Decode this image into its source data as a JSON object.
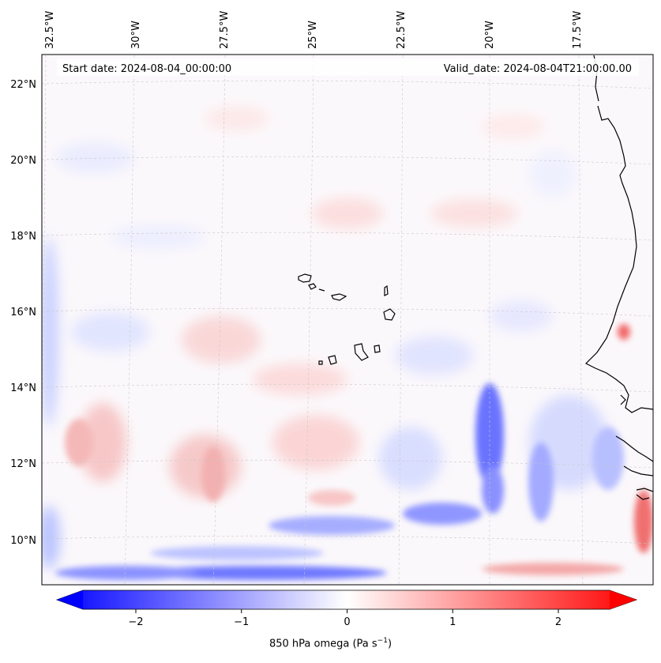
{
  "header": {
    "start_date": "Start date: 2024-08-04_00:00:00",
    "valid_date": "Valid_date: 2024-08-04T21:00:00.00"
  },
  "longitude_labels": [
    "32.5°W",
    "30°W",
    "27.5°W",
    "25°W",
    "22.5°W",
    "20°W",
    "17.5°W"
  ],
  "latitude_labels": [
    "22°N",
    "20°N",
    "18°N",
    "16°N",
    "14°N",
    "12°N",
    "10°N"
  ],
  "colorbar": {
    "tick_labels": [
      "−2",
      "−1",
      "0",
      "1",
      "2"
    ],
    "tick_values": [
      -2,
      -1,
      0,
      1,
      2
    ],
    "range": [
      -2.5,
      2.5
    ],
    "label": "850 hPa omega (Pa s",
    "label_exponent": "−1",
    "label_close": ")",
    "colormap": "bwr",
    "color_low": "#0000ff",
    "color_mid": "#ffffff",
    "color_high": "#ff0000"
  }
}
